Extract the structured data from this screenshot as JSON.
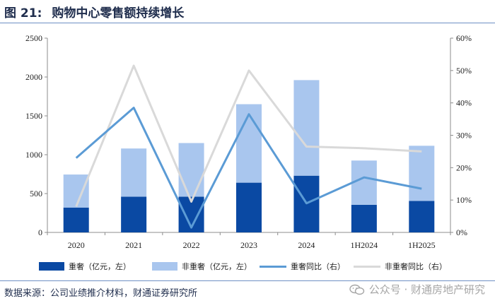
{
  "header": {
    "figure_label": "图 21:",
    "title": "购物中心零售额持续增长"
  },
  "footer": {
    "source": "数据来源：公司业绩推介材料，财通证券研究所",
    "watermark": "公众号 · 财通房地产研究"
  },
  "colors": {
    "heavy_bar": "#0a49a3",
    "light_bar": "#a9c6ee",
    "heavy_line": "#5b9bd5",
    "light_line": "#d9d9d9",
    "axis": "#8c8c8c",
    "rule": "#6e8fc4"
  },
  "legend": [
    {
      "label": "重奢（亿元，左）",
      "kind": "bar",
      "color": "#0a49a3"
    },
    {
      "label": "非重奢（亿元，左）",
      "kind": "bar",
      "color": "#a9c6ee"
    },
    {
      "label": "重奢同比（右）",
      "kind": "line",
      "color": "#5b9bd5"
    },
    {
      "label": "非重奢同比（右）",
      "kind": "line",
      "color": "#d9d9d9"
    }
  ],
  "chart_data": {
    "type": "bar",
    "categories": [
      "2020",
      "2021",
      "2022",
      "2023",
      "2024",
      "1H2024",
      "1H2025"
    ],
    "y_left": {
      "min": 0,
      "max": 2500,
      "ticks": [
        "0",
        "500",
        "1000",
        "1500",
        "2000",
        "2500"
      ]
    },
    "y_right": {
      "min": 0,
      "max": 60,
      "ticks": [
        "0%",
        "10%",
        "20%",
        "30%",
        "40%",
        "50%",
        "60%"
      ]
    },
    "stacked_bars": [
      {
        "name": "重奢（亿元，左）",
        "values": [
          320,
          460,
          460,
          640,
          730,
          355,
          405
        ]
      },
      {
        "name": "非重奢（亿元，左）",
        "values": [
          425,
          620,
          690,
          1010,
          1230,
          570,
          710
        ]
      }
    ],
    "lines": [
      {
        "name": "重奢同比（右）",
        "axis": "right",
        "values": [
          23,
          38.5,
          1.5,
          36.5,
          9,
          17,
          13.5
        ]
      },
      {
        "name": "非重奢同比（右）",
        "axis": "right",
        "values": [
          8,
          51.5,
          9.5,
          50,
          26.5,
          26,
          25
        ]
      }
    ],
    "grid": false,
    "legend_position": "bottom"
  }
}
